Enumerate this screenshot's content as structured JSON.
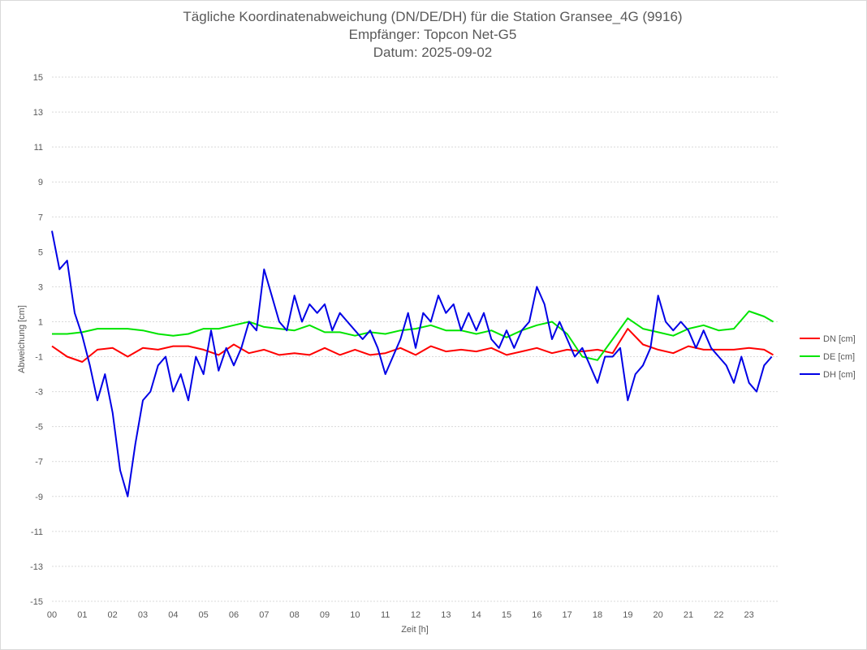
{
  "chart_data": {
    "type": "line",
    "title": "Tägliche Koordinatenabweichung (DN/DE/DH) für die Station Gransee_4G (9916)",
    "subtitle1": "Empfänger: Topcon Net-G5",
    "subtitle2": "Datum: 2025-09-02",
    "xlabel": "Zeit [h]",
    "ylabel": "Abweichung [cm]",
    "xlim": [
      0,
      24
    ],
    "ylim": [
      -15,
      15
    ],
    "x_ticks": [
      "00",
      "01",
      "02",
      "03",
      "04",
      "05",
      "06",
      "07",
      "08",
      "09",
      "10",
      "11",
      "12",
      "13",
      "14",
      "15",
      "16",
      "17",
      "18",
      "19",
      "20",
      "21",
      "22",
      "23"
    ],
    "y_ticks": [
      "15",
      "13",
      "11",
      "9",
      "7",
      "5",
      "3",
      "1",
      "-1",
      "-3",
      "-5",
      "-7",
      "-9",
      "-11",
      "-13",
      "-15"
    ],
    "grid": "horizontal-dotted",
    "legend_position": "right",
    "series": [
      {
        "name": "DN [cm]",
        "color": "#ff0000",
        "x": [
          0,
          0.5,
          1,
          1.5,
          2,
          2.5,
          3,
          3.5,
          4,
          4.5,
          5,
          5.5,
          6,
          6.5,
          7,
          7.5,
          8,
          8.5,
          9,
          9.5,
          10,
          10.5,
          11,
          11.5,
          12,
          12.5,
          13,
          13.5,
          14,
          14.5,
          15,
          15.5,
          16,
          16.5,
          17,
          17.5,
          18,
          18.5,
          19,
          19.5,
          20,
          20.5,
          21,
          21.5,
          22,
          22.5,
          23,
          23.5,
          23.8
        ],
        "values": [
          -0.4,
          -1.0,
          -1.3,
          -0.6,
          -0.5,
          -1.0,
          -0.5,
          -0.6,
          -0.4,
          -0.4,
          -0.6,
          -0.9,
          -0.3,
          -0.8,
          -0.6,
          -0.9,
          -0.8,
          -0.9,
          -0.5,
          -0.9,
          -0.6,
          -0.9,
          -0.8,
          -0.5,
          -0.9,
          -0.4,
          -0.7,
          -0.6,
          -0.7,
          -0.5,
          -0.9,
          -0.7,
          -0.5,
          -0.8,
          -0.6,
          -0.7,
          -0.6,
          -0.8,
          0.6,
          -0.3,
          -0.6,
          -0.8,
          -0.4,
          -0.6,
          -0.6,
          -0.6,
          -0.5,
          -0.6,
          -0.9
        ]
      },
      {
        "name": "DE [cm]",
        "color": "#00e400",
        "x": [
          0,
          0.5,
          1,
          1.5,
          2,
          2.5,
          3,
          3.5,
          4,
          4.5,
          5,
          5.5,
          6,
          6.5,
          7,
          7.5,
          8,
          8.5,
          9,
          9.5,
          10,
          10.5,
          11,
          11.5,
          12,
          12.5,
          13,
          13.5,
          14,
          14.5,
          15,
          15.5,
          16,
          16.5,
          17,
          17.5,
          18,
          18.5,
          19,
          19.5,
          20,
          20.5,
          21,
          21.5,
          22,
          22.5,
          23,
          23.5,
          23.8
        ],
        "values": [
          0.3,
          0.3,
          0.4,
          0.6,
          0.6,
          0.6,
          0.5,
          0.3,
          0.2,
          0.3,
          0.6,
          0.6,
          0.8,
          1.0,
          0.7,
          0.6,
          0.5,
          0.8,
          0.4,
          0.4,
          0.2,
          0.4,
          0.3,
          0.5,
          0.6,
          0.8,
          0.5,
          0.5,
          0.3,
          0.5,
          0.1,
          0.5,
          0.8,
          1.0,
          0.3,
          -1.0,
          -1.2,
          0.0,
          1.2,
          0.6,
          0.4,
          0.2,
          0.6,
          0.8,
          0.5,
          0.6,
          1.6,
          1.3,
          1.0
        ]
      },
      {
        "name": "DH [cm]",
        "color": "#0000e6",
        "x": [
          0,
          0.25,
          0.5,
          0.75,
          1,
          1.25,
          1.5,
          1.75,
          2,
          2.25,
          2.5,
          2.75,
          3,
          3.25,
          3.5,
          3.75,
          4,
          4.25,
          4.5,
          4.75,
          5,
          5.25,
          5.5,
          5.75,
          6,
          6.25,
          6.5,
          6.75,
          7,
          7.25,
          7.5,
          7.75,
          8,
          8.25,
          8.5,
          8.75,
          9,
          9.25,
          9.5,
          9.75,
          10,
          10.25,
          10.5,
          10.75,
          11,
          11.25,
          11.5,
          11.75,
          12,
          12.25,
          12.5,
          12.75,
          13,
          13.25,
          13.5,
          13.75,
          14,
          14.25,
          14.5,
          14.75,
          15,
          15.25,
          15.5,
          15.75,
          16,
          16.25,
          16.5,
          16.75,
          17,
          17.25,
          17.5,
          17.75,
          18,
          18.25,
          18.5,
          18.75,
          19,
          19.25,
          19.5,
          19.75,
          20,
          20.25,
          20.5,
          20.75,
          21,
          21.25,
          21.5,
          21.75,
          22,
          22.25,
          22.5,
          22.75,
          23,
          23.25,
          23.5,
          23.75
        ],
        "values": [
          6.2,
          4.0,
          4.5,
          1.5,
          0.2,
          -1.5,
          -3.5,
          -2.0,
          -4.2,
          -7.5,
          -9.0,
          -6.0,
          -3.5,
          -3.0,
          -1.5,
          -1.0,
          -3.0,
          -2.0,
          -3.5,
          -1.0,
          -2.0,
          0.5,
          -1.8,
          -0.5,
          -1.5,
          -0.5,
          1.0,
          0.5,
          4.0,
          2.5,
          1.0,
          0.5,
          2.5,
          1.0,
          2.0,
          1.5,
          2.0,
          0.5,
          1.5,
          1.0,
          0.5,
          0.0,
          0.5,
          -0.5,
          -2.0,
          -1.0,
          0.0,
          1.5,
          -0.5,
          1.5,
          1.0,
          2.5,
          1.5,
          2.0,
          0.5,
          1.5,
          0.5,
          1.5,
          0.0,
          -0.5,
          0.5,
          -0.5,
          0.5,
          1.0,
          3.0,
          2.0,
          0.0,
          1.0,
          0.0,
          -1.0,
          -0.5,
          -1.5,
          -2.5,
          -1.0,
          -1.0,
          -0.5,
          -3.5,
          -2.0,
          -1.5,
          -0.5,
          2.5,
          1.0,
          0.5,
          1.0,
          0.5,
          -0.5,
          0.5,
          -0.5,
          -1.0,
          -1.5,
          -2.5,
          -1.0,
          -2.5,
          -3.0,
          -1.5,
          -1.0
        ]
      }
    ]
  }
}
